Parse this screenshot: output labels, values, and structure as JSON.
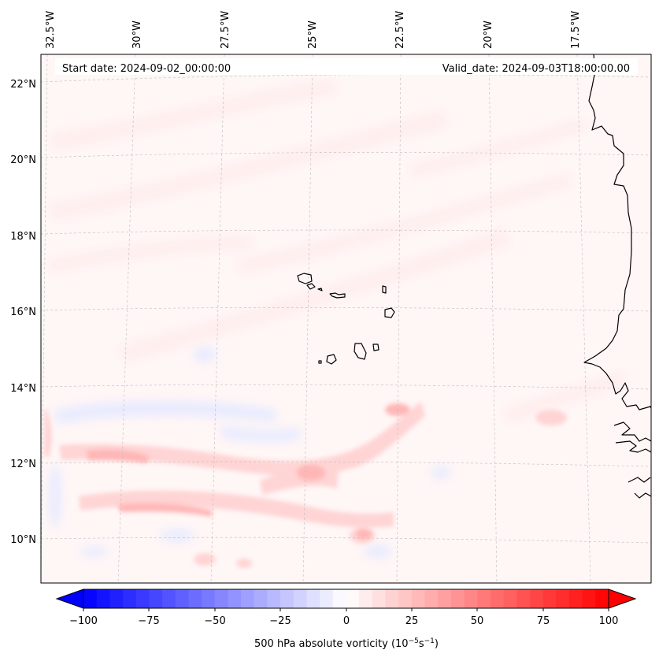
{
  "map": {
    "start_label": "Start date: 2024-09-02_00:00:00",
    "valid_label": "Valid_date: 2024-09-03T18:00:00.00",
    "region": "Eastern tropical North Atlantic, Cape Verde and West African coast",
    "lon_labels": [
      "32.5°W",
      "30°W",
      "27.5°W",
      "25°W",
      "22.5°W",
      "20°W",
      "17.5°W"
    ],
    "lat_labels": [
      "22°N",
      "20°N",
      "18°N",
      "16°N",
      "14°N",
      "12°N",
      "10°N"
    ]
  },
  "colorbar": {
    "title": "500 hPa absolute vorticity (10",
    "title_exp1": "−5",
    "title_mid": "s",
    "title_exp2": "−1",
    "title_end": ")",
    "ticks": [
      "−100",
      "−75",
      "−50",
      "−25",
      "0",
      "25",
      "50",
      "75",
      "100"
    ],
    "min": -100,
    "max": 100,
    "levels": 41,
    "cmap": "bwr",
    "low_color": "#0000ff",
    "mid_color": "#ffffff",
    "high_color": "#ff0000"
  },
  "colors": {
    "coastline": "#000000",
    "gridline": "#b8b8b8",
    "weak_positive": "#fff2f2",
    "moderate_positive": "#ffd6d6",
    "strong_positive": "#ffb8b8",
    "weak_negative": "#eef0ff",
    "moderate_negative": "#dcdfff"
  }
}
